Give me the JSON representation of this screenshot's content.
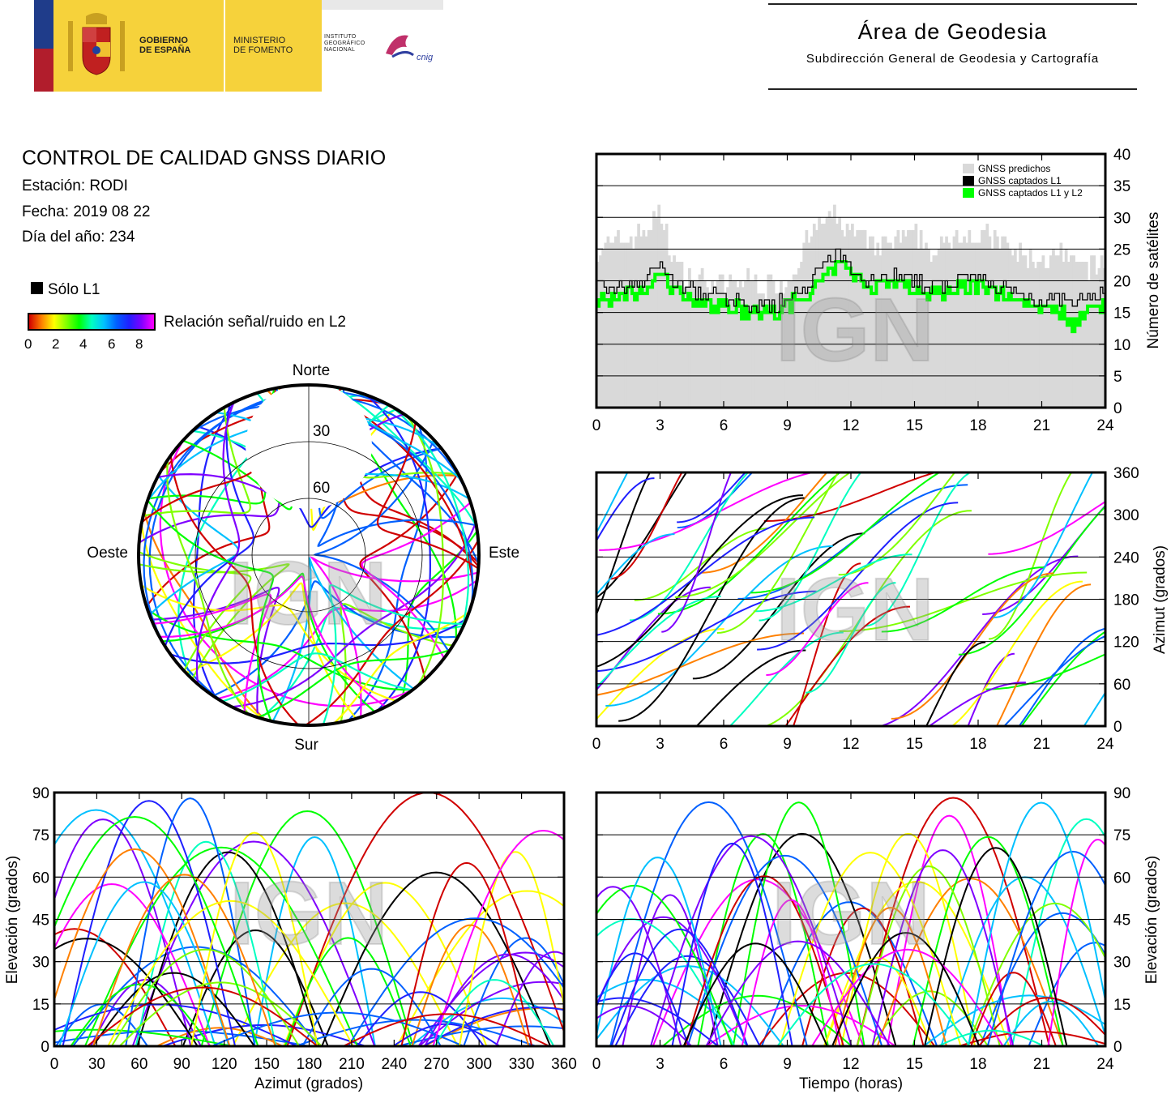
{
  "header": {
    "gobierno": "GOBIERNO\nDE ESPAÑA",
    "ministerio": "MINISTERIO\nDE FOMENTO",
    "instituto": "INSTITUTO\nGEOGRÁFICO\nNACIONAL",
    "cnig": "cnig",
    "area_title": "Área de Geodesia",
    "area_subtitle": "Subdirección General de Geodesia y Cartografía"
  },
  "info": {
    "title": "CONTROL DE CALIDAD GNSS DIARIO",
    "station": "Estación: RODI",
    "date": "Fecha: 2019 08 22",
    "doy": "Día del año: 234"
  },
  "legend": {
    "solo_l1": "Sólo L1",
    "snr_label": "Relación señal/ruido en L2",
    "snr_ticks": [
      "0",
      "2",
      "4",
      "6",
      "8"
    ]
  },
  "watermark": "IGN",
  "colors": {
    "predicted": "#d9d9d9",
    "l1": "#000000",
    "l1l2": "#00ff00",
    "snr_scale": [
      "#d00000",
      "#ff8000",
      "#ffff00",
      "#80ff00",
      "#00ff00",
      "#00ffc0",
      "#00c0ff",
      "#0060ff",
      "#2020ff",
      "#8000ff",
      "#ff00ff"
    ]
  },
  "chart_data": [
    {
      "id": "satellite_count",
      "type": "area",
      "ylabel": "Número de satélites",
      "x_ticks": [
        "0",
        "3",
        "6",
        "9",
        "12",
        "15",
        "18",
        "21",
        "24"
      ],
      "y_ticks": [
        "0",
        "5",
        "10",
        "15",
        "20",
        "25",
        "30",
        "35",
        "40"
      ],
      "xlim": [
        0,
        24
      ],
      "ylim": [
        0,
        40
      ],
      "legend_position": "top-right",
      "x": [
        0,
        1,
        2,
        2.5,
        3,
        3.5,
        4,
        5,
        6,
        7,
        8,
        9,
        10,
        10.5,
        11,
        11.5,
        12,
        13,
        14,
        15,
        16,
        17,
        18,
        19,
        20,
        21,
        22,
        22.5,
        23,
        24
      ],
      "series": [
        {
          "name": "GNSS predichos",
          "values": [
            25,
            26,
            27,
            29,
            30,
            24,
            21,
            20,
            19,
            20,
            19,
            20,
            27,
            29,
            30,
            29,
            28,
            25,
            26,
            27,
            24,
            28,
            27,
            26,
            24,
            23,
            24,
            22,
            22,
            23
          ]
        },
        {
          "name": "GNSS captados L1",
          "values": [
            19,
            19,
            20,
            21,
            23,
            20,
            19,
            18,
            17,
            16,
            16,
            17,
            20,
            22,
            23,
            24,
            22,
            20,
            21,
            20,
            19,
            20,
            20,
            19,
            18,
            17,
            17,
            16,
            17,
            18
          ]
        },
        {
          "name": "GNSS captados L1 y L2",
          "values": [
            17,
            17,
            18,
            19,
            21,
            19,
            18,
            17,
            16,
            15,
            15,
            16,
            18,
            20,
            21,
            23,
            21,
            19,
            20,
            19,
            18,
            19,
            19,
            18,
            17,
            16,
            15,
            13,
            15,
            17
          ]
        }
      ]
    },
    {
      "id": "skyplot",
      "type": "scatter",
      "directions": {
        "north": "Norte",
        "south": "Sur",
        "west": "Oeste",
        "east": "Este"
      },
      "ring_labels": [
        "30",
        "60"
      ]
    },
    {
      "id": "azimuth_time",
      "type": "scatter",
      "ylabel": "Azimut (grados)",
      "x_ticks": [
        "0",
        "3",
        "6",
        "9",
        "12",
        "15",
        "18",
        "21",
        "24"
      ],
      "y_ticks": [
        "0",
        "60",
        "120",
        "180",
        "240",
        "300",
        "360"
      ],
      "xlim": [
        0,
        24
      ],
      "ylim": [
        0,
        360
      ]
    },
    {
      "id": "elevation_azimuth",
      "type": "scatter",
      "xlabel": "Azimut (grados)",
      "ylabel": "Elevación (grados)",
      "x_ticks": [
        "0",
        "30",
        "60",
        "90",
        "120",
        "150",
        "180",
        "210",
        "240",
        "270",
        "300",
        "330",
        "360"
      ],
      "y_ticks": [
        "0",
        "15",
        "30",
        "45",
        "60",
        "75",
        "90"
      ],
      "xlim": [
        0,
        360
      ],
      "ylim": [
        0,
        90
      ]
    },
    {
      "id": "elevation_time",
      "type": "scatter",
      "xlabel": "Tiempo (horas)",
      "ylabel": "Elevación (grados)",
      "x_ticks": [
        "0",
        "3",
        "6",
        "9",
        "12",
        "15",
        "18",
        "21",
        "24"
      ],
      "y_ticks": [
        "0",
        "15",
        "30",
        "45",
        "60",
        "75",
        "90"
      ],
      "xlim": [
        0,
        24
      ],
      "ylim": [
        0,
        90
      ]
    }
  ]
}
